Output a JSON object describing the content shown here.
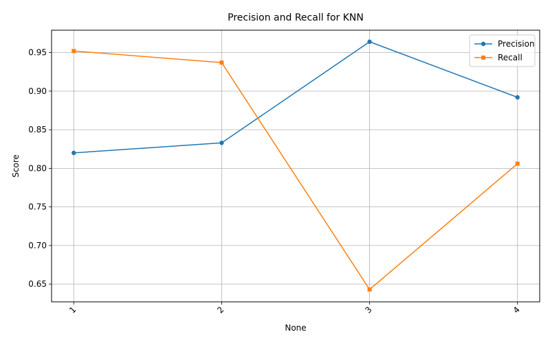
{
  "chart_data": {
    "type": "line",
    "title": "Precision and Recall for KNN",
    "xlabel": "None",
    "ylabel": "Score",
    "x": [
      1,
      2,
      3,
      4
    ],
    "x_tick_labels": [
      "1",
      "2",
      "3",
      "4"
    ],
    "x_tick_rotation_deg": 45,
    "y_ticks": [
      0.65,
      0.7,
      0.75,
      0.8,
      0.85,
      0.9,
      0.95
    ],
    "y_tick_labels": [
      "0.65",
      "0.70",
      "0.75",
      "0.80",
      "0.85",
      "0.90",
      "0.95"
    ],
    "xlim": [
      0.85,
      4.15
    ],
    "ylim": [
      0.627,
      0.979
    ],
    "grid": true,
    "legend_position": "top-right",
    "series": [
      {
        "name": "Precision",
        "color": "#1f77b4",
        "marker": "circle",
        "values": [
          0.82,
          0.833,
          0.964,
          0.892
        ]
      },
      {
        "name": "Recall",
        "color": "#ff7f0e",
        "marker": "square",
        "values": [
          0.952,
          0.937,
          0.643,
          0.806
        ]
      }
    ]
  }
}
